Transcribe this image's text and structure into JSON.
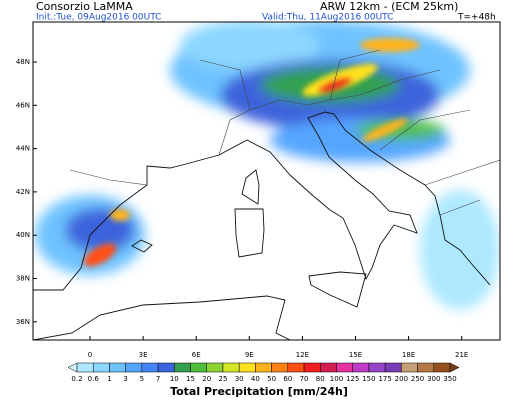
{
  "header": {
    "left": "Consorzio LaMMA",
    "model": "ARW 12km - (ECM 25km)",
    "init": "Init.:Tue, 09Aug2016 00UTC",
    "valid": "Valid:Thu, 11Aug2016 00UTC",
    "lead": "T=+48h"
  },
  "map": {
    "lat_labels": [
      "48N",
      "46N",
      "44N",
      "42N",
      "40N",
      "38N",
      "36N"
    ],
    "lon_labels": [
      "0",
      "3E",
      "6E",
      "9E",
      "12E",
      "15E",
      "18E",
      "21E"
    ]
  },
  "colorbar": {
    "labels": [
      "0.2",
      "0.6",
      "1",
      "3",
      "5",
      "7",
      "10",
      "15",
      "20",
      "25",
      "30",
      "40",
      "50",
      "60",
      "70",
      "80",
      "100",
      "125",
      "150",
      "175",
      "200",
      "250",
      "300",
      "350"
    ],
    "colors": [
      "#d2f5ff",
      "#aee8ff",
      "#8cd7ff",
      "#6ec3ff",
      "#55a5ff",
      "#4684f5",
      "#3c64dc",
      "#32a050",
      "#4fbe3c",
      "#8cd232",
      "#d2e628",
      "#ffe11e",
      "#ffb41e",
      "#ff8214",
      "#ff5014",
      "#f01e1e",
      "#d21e50",
      "#e632a0",
      "#be3cc8",
      "#9646c8",
      "#783cb4",
      "#c8a078",
      "#b47846",
      "#96501e",
      "#783c14"
    ],
    "title": "Total Precipitation [mm/24h]"
  }
}
